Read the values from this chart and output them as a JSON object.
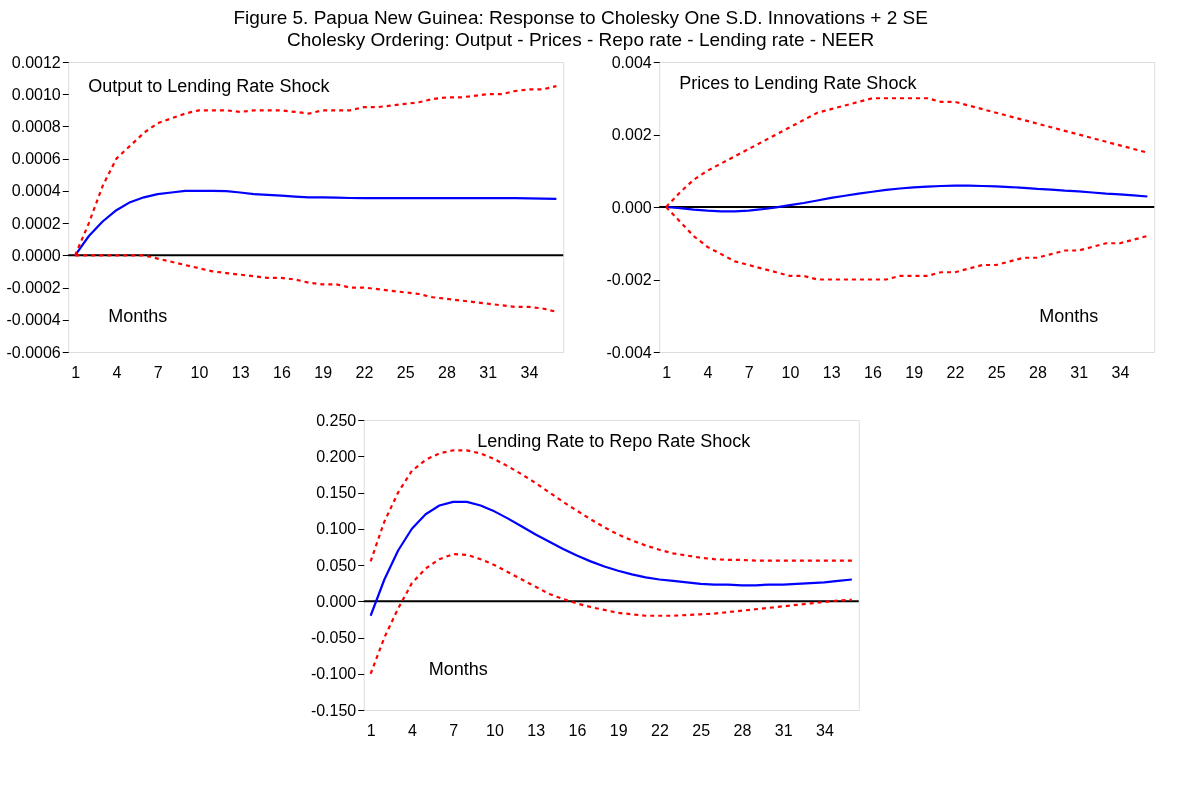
{
  "chart_data": [
    {
      "type": "line",
      "title": "Figure 5. Papua New Guinea: Response to Cholesky One S.D. Innovations + 2 SE",
      "subtitle": "Cholesky Ordering: Output - Prices - Repo rate - Lending rate - NEER",
      "annotations": [
        "Output to Lending Rate Shock",
        "Months"
      ],
      "x": [
        1,
        2,
        3,
        4,
        5,
        6,
        7,
        8,
        9,
        10,
        11,
        12,
        13,
        14,
        15,
        16,
        17,
        18,
        19,
        20,
        21,
        22,
        23,
        24,
        25,
        26,
        27,
        28,
        29,
        30,
        31,
        32,
        33,
        34,
        35,
        36
      ],
      "xlim": [
        0.5,
        36.5
      ],
      "xticks": [
        1,
        4,
        7,
        10,
        13,
        16,
        19,
        22,
        25,
        28,
        31,
        34
      ],
      "ylim": [
        -0.0006,
        0.0012
      ],
      "yticks": [
        {
          "value": -0.0006,
          "label": "-0.0006"
        },
        {
          "value": -0.0004,
          "label": "-0.0004"
        },
        {
          "value": -0.0002,
          "label": "-0.0002"
        },
        {
          "value": 0,
          "label": "0.0000"
        },
        {
          "value": 0.0002,
          "label": "0.0002"
        },
        {
          "value": 0.0004,
          "label": "0.0004"
        },
        {
          "value": 0.0006,
          "label": "0.0006"
        },
        {
          "value": 0.0008,
          "label": "0.0008"
        },
        {
          "value": 0.001,
          "label": "0.0010"
        },
        {
          "value": 0.0012,
          "label": "0.0012"
        }
      ],
      "ref_lines": [
        {
          "axis": "y",
          "value": 0,
          "color": "#000000"
        }
      ],
      "series": [
        {
          "color": "#0000ff",
          "line_style": "solid",
          "values": [
            0,
            0.00012,
            0.00021,
            0.00028,
            0.00033,
            0.00036,
            0.00038,
            0.00039,
            0.0004,
            0.0004,
            0.0004,
            0.000398,
            0.00039,
            0.00038,
            0.000375,
            0.00037,
            0.000365,
            0.00036,
            0.00036,
            0.000358,
            0.000356,
            0.000355,
            0.000355,
            0.000355,
            0.000355,
            0.000355,
            0.000355,
            0.000355,
            0.000355,
            0.000355,
            0.000355,
            0.000355,
            0.000355,
            0.000353,
            0.000352,
            0.00035
          ]
        },
        {
          "color": "#ff0000",
          "line_style": "dashed",
          "values": [
            0,
            0.0002,
            0.00043,
            0.0006,
            0.00068,
            0.00076,
            0.00082,
            0.00085,
            0.00088,
            0.0009,
            0.0009,
            0.0009,
            0.00089,
            0.0009,
            0.0009,
            0.0009,
            0.00089,
            0.00088,
            0.0009,
            0.0009,
            0.0009,
            0.00092,
            0.00092,
            0.00093,
            0.00094,
            0.00095,
            0.00097,
            0.00098,
            0.00098,
            0.00099,
            0.001,
            0.001,
            0.00102,
            0.00103,
            0.00103,
            0.00105
          ]
        },
        {
          "color": "#ff0000",
          "line_style": "dashed",
          "values": [
            0,
            0,
            0,
            0,
            0,
            0,
            -2e-05,
            -4e-05,
            -6e-05,
            -8e-05,
            -0.0001,
            -0.00011,
            -0.00012,
            -0.00013,
            -0.00014,
            -0.00014,
            -0.00015,
            -0.00017,
            -0.00018,
            -0.00018,
            -0.0002,
            -0.0002,
            -0.00021,
            -0.00022,
            -0.00023,
            -0.00024,
            -0.00026,
            -0.00027,
            -0.00028,
            -0.00029,
            -0.0003,
            -0.00031,
            -0.00032,
            -0.00032,
            -0.00033,
            -0.00035
          ]
        }
      ],
      "grid": false
    },
    {
      "type": "line",
      "annotations": [
        "Prices to Lending Rate Shock",
        "Months"
      ],
      "x": [
        1,
        2,
        3,
        4,
        5,
        6,
        7,
        8,
        9,
        10,
        11,
        12,
        13,
        14,
        15,
        16,
        17,
        18,
        19,
        20,
        21,
        22,
        23,
        24,
        25,
        26,
        27,
        28,
        29,
        30,
        31,
        32,
        33,
        34,
        35,
        36
      ],
      "xlim": [
        0.5,
        36.5
      ],
      "xticks": [
        1,
        4,
        7,
        10,
        13,
        16,
        19,
        22,
        25,
        28,
        31,
        34
      ],
      "ylim": [
        -0.004,
        0.004
      ],
      "yticks": [
        {
          "value": -0.004,
          "label": "-0.004"
        },
        {
          "value": -0.002,
          "label": "-0.002"
        },
        {
          "value": 0,
          "label": "0.000"
        },
        {
          "value": 0.002,
          "label": "0.002"
        },
        {
          "value": 0.004,
          "label": "0.004"
        }
      ],
      "ref_lines": [
        {
          "axis": "y",
          "value": 0,
          "color": "#000000"
        }
      ],
      "series": [
        {
          "color": "#0000ff",
          "line_style": "solid",
          "values": [
            0,
            -3e-05,
            -7e-05,
            -0.0001,
            -0.00012,
            -0.00012,
            -0.0001,
            -6e-05,
            -1e-05,
            5e-05,
            0.00011,
            0.00018,
            0.00025,
            0.00031,
            0.00037,
            0.00042,
            0.00047,
            0.00051,
            0.00054,
            0.00056,
            0.00058,
            0.00059,
            0.00059,
            0.00058,
            0.00057,
            0.00055,
            0.00053,
            0.0005,
            0.00048,
            0.00045,
            0.00043,
            0.0004,
            0.00037,
            0.00035,
            0.00032,
            0.00029
          ]
        },
        {
          "color": "#ff0000",
          "line_style": "dashed",
          "values": [
            0,
            0.0004,
            0.00075,
            0.001,
            0.0012,
            0.0014,
            0.0016,
            0.0018,
            0.002,
            0.0022,
            0.0024,
            0.0026,
            0.0027,
            0.0028,
            0.0029,
            0.003,
            0.003,
            0.003,
            0.003,
            0.003,
            0.0029,
            0.0029,
            0.0028,
            0.0027,
            0.0026,
            0.0025,
            0.0024,
            0.0023,
            0.0022,
            0.0021,
            0.002,
            0.0019,
            0.0018,
            0.0017,
            0.0016,
            0.0015
          ]
        },
        {
          "color": "#ff0000",
          "line_style": "dashed",
          "values": [
            0,
            -0.0004,
            -0.0008,
            -0.0011,
            -0.0013,
            -0.0015,
            -0.0016,
            -0.0017,
            -0.0018,
            -0.0019,
            -0.0019,
            -0.002,
            -0.002,
            -0.002,
            -0.002,
            -0.002,
            -0.002,
            -0.0019,
            -0.0019,
            -0.0019,
            -0.0018,
            -0.0018,
            -0.0017,
            -0.0016,
            -0.0016,
            -0.0015,
            -0.0014,
            -0.0014,
            -0.0013,
            -0.0012,
            -0.0012,
            -0.0011,
            -0.001,
            -0.001,
            -0.0009,
            -0.0008
          ]
        }
      ],
      "grid": false
    },
    {
      "type": "line",
      "annotations": [
        "Lending Rate to Repo Rate Shock",
        "Months"
      ],
      "x": [
        1,
        2,
        3,
        4,
        5,
        6,
        7,
        8,
        9,
        10,
        11,
        12,
        13,
        14,
        15,
        16,
        17,
        18,
        19,
        20,
        21,
        22,
        23,
        24,
        25,
        26,
        27,
        28,
        29,
        30,
        31,
        32,
        33,
        34,
        35,
        36
      ],
      "xlim": [
        0.5,
        36.5
      ],
      "xticks": [
        1,
        4,
        7,
        10,
        13,
        16,
        19,
        22,
        25,
        28,
        31,
        34
      ],
      "ylim": [
        -0.15,
        0.25
      ],
      "yticks": [
        {
          "value": -0.15,
          "label": "-0.150"
        },
        {
          "value": -0.1,
          "label": "-0.100"
        },
        {
          "value": -0.05,
          "label": "-0.050"
        },
        {
          "value": 0,
          "label": "0.000"
        },
        {
          "value": 0.05,
          "label": "0.050"
        },
        {
          "value": 0.1,
          "label": "0.100"
        },
        {
          "value": 0.15,
          "label": "0.150"
        },
        {
          "value": 0.2,
          "label": "0.200"
        },
        {
          "value": 0.25,
          "label": "0.250"
        }
      ],
      "ref_lines": [
        {
          "axis": "y",
          "value": 0,
          "color": "#000000"
        }
      ],
      "series": [
        {
          "color": "#0000ff",
          "line_style": "solid",
          "values": [
            -0.02,
            0.03,
            0.07,
            0.1,
            0.12,
            0.132,
            0.137,
            0.137,
            0.132,
            0.124,
            0.114,
            0.103,
            0.092,
            0.082,
            0.072,
            0.063,
            0.055,
            0.048,
            0.042,
            0.037,
            0.033,
            0.03,
            0.028,
            0.026,
            0.024,
            0.023,
            0.023,
            0.022,
            0.022,
            0.023,
            0.023,
            0.024,
            0.025,
            0.026,
            0.028,
            0.03
          ]
        },
        {
          "color": "#ff0000",
          "line_style": "dashed",
          "values": [
            0.055,
            0.11,
            0.15,
            0.18,
            0.195,
            0.204,
            0.208,
            0.208,
            0.204,
            0.196,
            0.186,
            0.175,
            0.163,
            0.15,
            0.137,
            0.125,
            0.113,
            0.102,
            0.092,
            0.084,
            0.077,
            0.071,
            0.066,
            0.063,
            0.06,
            0.058,
            0.057,
            0.057,
            0.056,
            0.056,
            0.056,
            0.056,
            0.056,
            0.056,
            0.056,
            0.056
          ]
        },
        {
          "color": "#ff0000",
          "line_style": "dashed",
          "values": [
            -0.1,
            -0.05,
            -0.01,
            0.025,
            0.045,
            0.058,
            0.065,
            0.064,
            0.058,
            0.05,
            0.04,
            0.03,
            0.02,
            0.01,
            0.003,
            -0.003,
            -0.008,
            -0.012,
            -0.016,
            -0.018,
            -0.02,
            -0.02,
            -0.02,
            -0.019,
            -0.018,
            -0.017,
            -0.015,
            -0.013,
            -0.011,
            -0.009,
            -0.007,
            -0.005,
            -0.003,
            -0.001,
            0.001,
            0.002
          ]
        }
      ],
      "grid": false
    }
  ]
}
